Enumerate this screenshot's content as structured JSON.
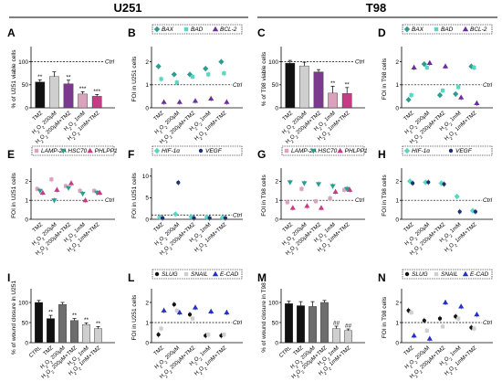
{
  "header": {
    "left": "U251",
    "right": "T98"
  },
  "colors": {
    "black": "#111111",
    "dark_gray": "#6d6d6d",
    "light_gray": "#cfcfcf",
    "pink": "#d9a3bd",
    "purple": "#7b3a8f",
    "magenta": "#c73a86",
    "teal": "#2a9d8f",
    "mint": "#59d6c2",
    "navy": "#1b2f73",
    "blue": "#2431c6",
    "violet": "#6b2ea0"
  },
  "chart_data": [
    {
      "id": "A",
      "type": "bar",
      "ylabel": "% of U251 viable cells",
      "ylim": [
        0,
        125
      ],
      "ticks": [
        "0",
        "50",
        "100"
      ],
      "ctrl_label": "Ctrl",
      "ctrl_value": 100,
      "categories": [
        "TMZ",
        "H2O2 200µM",
        "H2O2 200µM+TMZ",
        "H2O2 1mM",
        "H2O2 1mM+TMZ"
      ],
      "values": [
        56,
        68,
        52,
        30,
        25
      ],
      "errors": [
        5,
        10,
        8,
        5,
        4
      ],
      "colors": [
        "#111111",
        "#cfcfcf",
        "#7b3a8f",
        "#d9a3bd",
        "#c73a86"
      ],
      "stars": [
        "**",
        "",
        "**",
        "***",
        "***"
      ]
    },
    {
      "id": "B",
      "type": "scatter",
      "ylabel": "FOI in U251 cells",
      "ylim": [
        0,
        2.5
      ],
      "ticks": [
        "0",
        "1",
        "2"
      ],
      "ctrl_label": "Ctrl",
      "ctrl_value": 1,
      "legend": [
        "BAX",
        "BAD",
        "BCL-2"
      ],
      "categories": [
        "TMZ",
        "H2O2 200µM",
        "H2O2 200µM+TMZ",
        "H2O2 1mM",
        "H2O2 1mM+TMZ"
      ],
      "series": [
        {
          "name": "BAX",
          "values": [
            1.8,
            1.45,
            1.45,
            1.7,
            2.0
          ]
        },
        {
          "name": "BAD",
          "values": [
            1.25,
            1.1,
            1.35,
            1.45,
            1.5
          ]
        },
        {
          "name": "BCL-2",
          "values": [
            0.25,
            0.25,
            0.3,
            0.4,
            0.25
          ]
        }
      ]
    },
    {
      "id": "C",
      "type": "bar",
      "ylabel": "% of T98 viable cells",
      "ylim": [
        0,
        125
      ],
      "ticks": [
        "0",
        "50",
        "100"
      ],
      "ctrl_label": "Ctrl",
      "ctrl_value": 100,
      "categories": [
        "TMZ",
        "H2O2 200µM",
        "H2O2 200µM+TMZ",
        "H2O2 1mM",
        "H2O2 1mM+TMZ"
      ],
      "values": [
        97,
        91,
        78,
        32,
        31
      ],
      "errors": [
        6,
        8,
        5,
        15,
        13
      ],
      "colors": [
        "#111111",
        "#cfcfcf",
        "#7b3a8f",
        "#d9a3bd",
        "#c73a86"
      ],
      "stars": [
        "",
        "",
        "",
        "**",
        "**"
      ]
    },
    {
      "id": "D",
      "type": "scatter",
      "ylabel": "FOI in T98 cells",
      "ylim": [
        0,
        2.5
      ],
      "ticks": [
        "0",
        "1",
        "2"
      ],
      "ctrl_label": "Ctrl",
      "ctrl_value": 1,
      "legend": [
        "BAX",
        "BAD",
        "BCL-2"
      ],
      "categories": [
        "TMZ",
        "H2O2 200µM",
        "H2O2 200µM+TMZ",
        "H2O2 1mM",
        "H2O2 1mM+TMZ"
      ],
      "series": [
        {
          "name": "BAX",
          "values": [
            0.35,
            1.9,
            0.55,
            0.6,
            1.8
          ]
        },
        {
          "name": "BAD",
          "values": [
            0.55,
            1.75,
            0.75,
            0.9,
            1.75
          ]
        },
        {
          "name": "BCL-2",
          "values": [
            1.75,
            1.95,
            1.8,
            0.45,
            0.2
          ]
        }
      ]
    },
    {
      "id": "E",
      "type": "scatter",
      "ylabel": "FOI in U251 cells",
      "ylim": [
        0,
        2.5
      ],
      "ticks": [
        "0",
        "1",
        "2"
      ],
      "ctrl_label": "Ctrl",
      "ctrl_value": 1,
      "legend": [
        "LAMP-2A",
        "HSC70",
        "PHLPP1"
      ],
      "categories": [
        "TMZ",
        "H2O2 200µM",
        "H2O2 200µM+TMZ",
        "H2O2 1mM",
        "H2O2 1mM+TMZ"
      ],
      "series": [
        {
          "name": "LAMP-2A",
          "values": [
            1.6,
            2.1,
            1.75,
            1.5,
            1.5
          ]
        },
        {
          "name": "HSC70",
          "values": [
            1.5,
            1.0,
            1.65,
            1.35,
            1.4
          ]
        },
        {
          "name": "PHLPP1",
          "values": [
            1.4,
            1.55,
            1.9,
            1.0,
            1.4
          ]
        }
      ]
    },
    {
      "id": "F",
      "type": "scatter",
      "ylabel": "FOI in U251 cells",
      "ylim": [
        0,
        11
      ],
      "ticks": [
        "0",
        "5",
        "10"
      ],
      "ctrl_label": "Ctrl",
      "ctrl_value": 1,
      "legend": [
        "HIF-1α",
        "VEGF"
      ],
      "categories": [
        "TMZ",
        "H2O2 200µM",
        "H2O2 200µM+TMZ",
        "H2O2 1mM",
        "H2O2 1mM+TMZ"
      ],
      "series": [
        {
          "name": "HIF-1α",
          "values": [
            0.5,
            1.2,
            0.6,
            0.5,
            0.4
          ]
        },
        {
          "name": "VEGF",
          "values": [
            0.3,
            8.5,
            0.3,
            0.3,
            0.3
          ]
        }
      ]
    },
    {
      "id": "G",
      "type": "scatter",
      "ylabel": "FOI in T98 cells",
      "ylim": [
        0,
        2.5
      ],
      "ticks": [
        "0",
        "1",
        "2"
      ],
      "ctrl_label": "Ctrl",
      "ctrl_value": 1,
      "legend": [
        "LAMP-2A",
        "HSC70",
        "PHLPP1"
      ],
      "categories": [
        "TMZ",
        "H2O2 200µM",
        "H2O2 200µM+TMZ",
        "H2O2 1mM",
        "H2O2 1mM+TMZ"
      ],
      "series": [
        {
          "name": "LAMP-2A",
          "values": [
            0.9,
            1.6,
            0.95,
            1.1,
            1.55
          ]
        },
        {
          "name": "HSC70",
          "values": [
            1.95,
            1.9,
            1.85,
            1.75,
            1.6
          ]
        },
        {
          "name": "PHLPP1",
          "values": [
            0.6,
            0.7,
            0.6,
            1.45,
            1.55
          ]
        }
      ]
    },
    {
      "id": "H",
      "type": "scatter",
      "ylabel": "FOI in T98 cells",
      "ylim": [
        0,
        2.5
      ],
      "ticks": [
        "0",
        "1",
        "2"
      ],
      "ctrl_label": "Ctrl",
      "ctrl_value": 1,
      "legend": [
        "HIF-1α",
        "VEGF"
      ],
      "categories": [
        "TMZ",
        "H2O2 200µM",
        "H2O2 200µM+TMZ",
        "H2O2 1mM",
        "H2O2 1mM+TMZ"
      ],
      "series": [
        {
          "name": "HIF-1α",
          "values": [
            2.0,
            1.95,
            1.9,
            1.2,
            0.45
          ]
        },
        {
          "name": "VEGF",
          "values": [
            1.9,
            1.95,
            1.85,
            0.4,
            0.4
          ]
        }
      ]
    },
    {
      "id": "I",
      "type": "bar",
      "ylabel": "% of wound closure in U251",
      "ylim": [
        0,
        125
      ],
      "ticks": [
        "0",
        "50",
        "100"
      ],
      "categories": [
        "CTRL",
        "TMZ",
        "H2O2 200µM",
        "H2O2 200µM+TMZ",
        "H2O2 1mM",
        "H2O2 1mM+TMZ"
      ],
      "values": [
        100,
        60,
        95,
        55,
        45,
        35
      ],
      "errors": [
        5,
        8,
        5,
        5,
        4,
        5
      ],
      "colors": [
        "#111111",
        "#111111",
        "#6d6d6d",
        "#6d6d6d",
        "#cfcfcf",
        "#cfcfcf"
      ],
      "stars": [
        "",
        "**",
        "",
        "**",
        "**",
        "**"
      ]
    },
    {
      "id": "L",
      "type": "scatter",
      "ylabel": "FOI in U251 cells",
      "ylim": [
        0,
        2.5
      ],
      "ticks": [
        "0",
        "1",
        "2"
      ],
      "ctrl_label": "Ctrl",
      "ctrl_value": 1,
      "legend": [
        "SLUG",
        "SNAIL",
        "E-CAD"
      ],
      "categories": [
        "TMZ",
        "H2O2 200µM",
        "H2O2 200µM+TMZ",
        "H2O2 1mM",
        "H2O2 1mM+TMZ"
      ],
      "series": [
        {
          "name": "SLUG",
          "values": [
            0.4,
            1.9,
            1.4,
            0.35,
            0.35
          ]
        },
        {
          "name": "SNAIL",
          "values": [
            0.7,
            1.6,
            1.2,
            0.4,
            0.4
          ]
        },
        {
          "name": "E-CAD",
          "values": [
            1.6,
            1.5,
            1.75,
            1.55,
            1.5
          ]
        }
      ]
    },
    {
      "id": "M",
      "type": "bar",
      "ylabel": "% of wound closure in T98",
      "ylim": [
        0,
        125
      ],
      "ticks": [
        "0",
        "50",
        "100"
      ],
      "categories": [
        "CTRL",
        "TMZ",
        "H2O2 200µM",
        "H2O2 200µM+TMZ",
        "H2O2 1mM",
        "H2O2 1mM+TMZ"
      ],
      "values": [
        97,
        92,
        90,
        100,
        35,
        30
      ],
      "errors": [
        6,
        10,
        12,
        5,
        6,
        4
      ],
      "colors": [
        "#111111",
        "#111111",
        "#6d6d6d",
        "#6d6d6d",
        "#cfcfcf",
        "#cfcfcf"
      ],
      "stars": [
        "",
        "",
        "",
        "",
        "##",
        "##"
      ]
    },
    {
      "id": "N",
      "type": "scatter",
      "ylabel": "FOI in T98 cells",
      "ylim": [
        0,
        2.5
      ],
      "ticks": [
        "0",
        "1",
        "2"
      ],
      "ctrl_label": "Ctrl",
      "ctrl_value": 1,
      "legend": [
        "SLUG",
        "SNAIL",
        "E-CAD"
      ],
      "categories": [
        "TMZ",
        "H2O2 200µM",
        "H2O2 200µM+TMZ",
        "H2O2 1mM",
        "H2O2 1mM+TMZ"
      ],
      "series": [
        {
          "name": "SLUG",
          "values": [
            1.6,
            1.1,
            1.2,
            1.3,
            0.75
          ]
        },
        {
          "name": "SNAIL",
          "values": [
            1.5,
            0.6,
            0.8,
            1.2,
            0.7
          ]
        },
        {
          "name": "E-CAD",
          "values": [
            0.35,
            0.2,
            2.0,
            1.8,
            1.4
          ]
        }
      ]
    }
  ]
}
